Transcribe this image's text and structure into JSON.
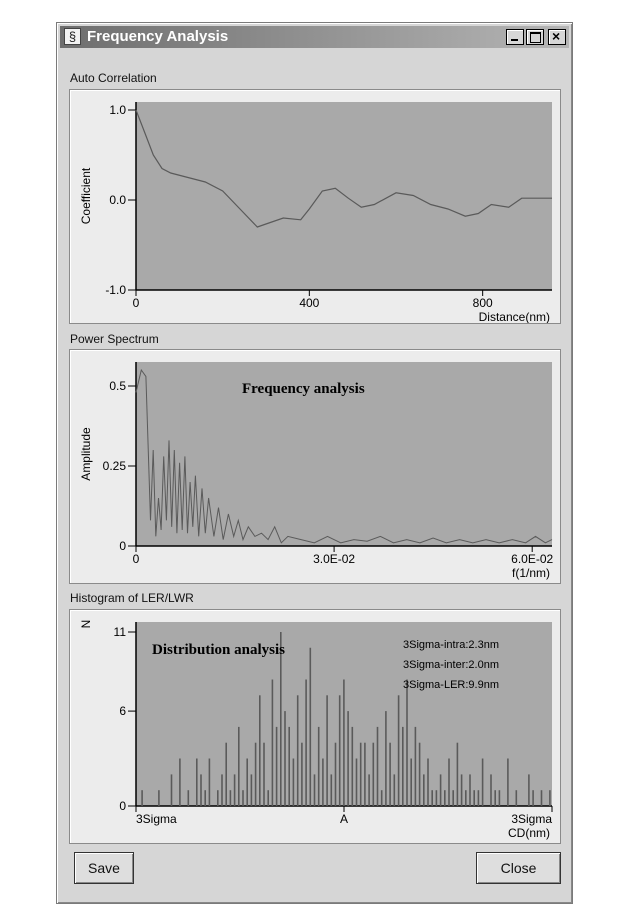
{
  "window": {
    "title": "Frequency Analysis"
  },
  "sections": {
    "autocorrelation": "Auto Correlation",
    "power": "Power Spectrum",
    "histogram": "Histogram of LER/LWR"
  },
  "buttons": {
    "save": "Save",
    "close": "Close"
  },
  "colors": {
    "plot_bg": "#a9a9a9",
    "line": "#5a5a5a",
    "axis": "#000000"
  },
  "chart_data": [
    {
      "type": "line",
      "title": "Auto Correlation",
      "xlabel": "Distance(nm)",
      "ylabel": "Coefficient",
      "xlim": [
        0,
        960
      ],
      "ylim": [
        -1.0,
        1.0
      ],
      "xticks": [
        0,
        400,
        800
      ],
      "xtick_labels": [
        "0",
        "400",
        "800"
      ],
      "yticks": [
        1.0,
        0.0,
        -1.0
      ],
      "ytick_labels": [
        "1.0",
        "0.0",
        "-1.0"
      ],
      "series": [
        {
          "x": [
            0,
            20,
            40,
            60,
            80,
            120,
            160,
            200,
            240,
            280,
            310,
            340,
            380,
            400,
            430,
            460,
            490,
            520,
            550,
            600,
            640,
            680,
            720,
            760,
            790,
            820,
            860,
            890,
            960
          ],
          "y": [
            1.0,
            0.75,
            0.5,
            0.35,
            0.3,
            0.25,
            0.2,
            0.1,
            -0.1,
            -0.3,
            -0.25,
            -0.2,
            -0.22,
            -0.1,
            0.1,
            0.13,
            0.02,
            -0.08,
            -0.05,
            0.08,
            0.05,
            -0.05,
            -0.1,
            -0.18,
            -0.15,
            -0.05,
            -0.08,
            0.02,
            0.02
          ]
        }
      ]
    },
    {
      "type": "line",
      "title": "Power Spectrum",
      "annotation": "Frequency analysis",
      "xlabel": "f(1/nm)",
      "ylabel": "Amplitude",
      "xlim": [
        0,
        0.063
      ],
      "ylim": [
        0,
        0.55
      ],
      "xticks": [
        0,
        0.03,
        0.06
      ],
      "xtick_labels": [
        "0",
        "3.0E-02",
        "6.0E-02"
      ],
      "yticks": [
        0.5,
        0.25,
        0
      ],
      "ytick_labels": [
        "0.5",
        "0.25",
        "0"
      ],
      "series": [
        {
          "x": [
            0,
            0.0008,
            0.0015,
            0.0022,
            0.0026,
            0.003,
            0.0034,
            0.0038,
            0.0042,
            0.0046,
            0.005,
            0.0054,
            0.0058,
            0.0062,
            0.0066,
            0.007,
            0.0074,
            0.0078,
            0.0082,
            0.0086,
            0.009,
            0.0095,
            0.01,
            0.0105,
            0.011,
            0.0118,
            0.0125,
            0.0132,
            0.014,
            0.0148,
            0.0155,
            0.0162,
            0.017,
            0.018,
            0.019,
            0.02,
            0.021,
            0.022,
            0.023,
            0.025,
            0.027,
            0.029,
            0.031,
            0.033,
            0.035,
            0.037,
            0.039,
            0.041,
            0.043,
            0.045,
            0.047,
            0.049,
            0.051,
            0.053,
            0.055,
            0.057,
            0.059,
            0.0605,
            0.062,
            0.063
          ],
          "y": [
            0.48,
            0.55,
            0.53,
            0.08,
            0.3,
            0.03,
            0.15,
            0.05,
            0.28,
            0.08,
            0.33,
            0.06,
            0.3,
            0.04,
            0.26,
            0.05,
            0.28,
            0.04,
            0.2,
            0.06,
            0.22,
            0.03,
            0.18,
            0.04,
            0.15,
            0.03,
            0.12,
            0.02,
            0.1,
            0.03,
            0.08,
            0.02,
            0.06,
            0.03,
            0.04,
            0.02,
            0.06,
            0.01,
            0.03,
            0.02,
            0.01,
            0.03,
            0.01,
            0.02,
            0.015,
            0.03,
            0.01,
            0.02,
            0.01,
            0.025,
            0.01,
            0.02,
            0.01,
            0.02,
            0.01,
            0.02,
            0.01,
            0.03,
            0.01,
            0.02
          ]
        }
      ]
    },
    {
      "type": "bar",
      "title": "Histogram of LER/LWR",
      "annotation": "Distribution analysis",
      "xlabel": "CD(nm)",
      "ylabel": "N",
      "ylim": [
        0,
        11
      ],
      "yticks": [
        11,
        6,
        0
      ],
      "ytick_labels": [
        "11",
        "6",
        "0"
      ],
      "xtick_labels": [
        "3Sigma",
        "A",
        "3Sigma"
      ],
      "stats": [
        "3Sigma-intra:2.3nm",
        "3Sigma-inter:2.0nm",
        "3Sigma-LER:9.9nm"
      ],
      "values": [
        1,
        0,
        0,
        0,
        1,
        0,
        0,
        2,
        0,
        3,
        0,
        1,
        0,
        3,
        2,
        1,
        3,
        0,
        1,
        2,
        4,
        1,
        2,
        5,
        1,
        3,
        2,
        4,
        7,
        4,
        1,
        8,
        5,
        11,
        6,
        5,
        3,
        7,
        4,
        8,
        10,
        2,
        5,
        3,
        7,
        2,
        4,
        7,
        8,
        6,
        5,
        3,
        4,
        4,
        2,
        4,
        5,
        1,
        6,
        4,
        2,
        7,
        5,
        8,
        3,
        5,
        4,
        2,
        3,
        1,
        1,
        2,
        1,
        3,
        1,
        4,
        2,
        1,
        2,
        1,
        1,
        3,
        0,
        2,
        1,
        1,
        0,
        3,
        0,
        1,
        0,
        0,
        2,
        1,
        0,
        1,
        0,
        1
      ]
    }
  ]
}
